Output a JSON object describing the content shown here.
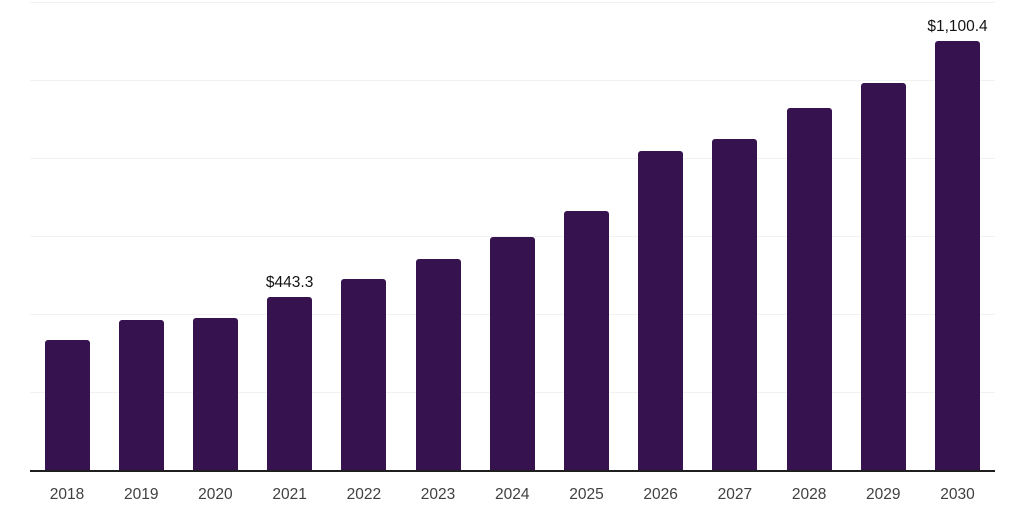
{
  "chart_data": {
    "type": "bar",
    "title": "",
    "xlabel": "",
    "ylabel": "",
    "categories": [
      "2018",
      "2019",
      "2020",
      "2021",
      "2022",
      "2023",
      "2024",
      "2025",
      "2026",
      "2027",
      "2028",
      "2029",
      "2030"
    ],
    "values": [
      333,
      385,
      390,
      443.3,
      490,
      541,
      597,
      664,
      818,
      849,
      928,
      992,
      1100.4
    ],
    "data_labels": [
      "",
      "",
      "",
      "$443.3",
      "",
      "",
      "",
      "",
      "",
      "",
      "",
      "",
      "$1,100.4"
    ],
    "ylim": [
      0,
      1200
    ],
    "grid_step": 200,
    "grid": true,
    "legend": false,
    "colors": {
      "bar": "#36124F",
      "gridline": "#F2F2F2",
      "axis_line": "#1F1F1F",
      "tick_label": "#404040",
      "data_label": "#141414",
      "background": "#FFFFFF"
    }
  }
}
